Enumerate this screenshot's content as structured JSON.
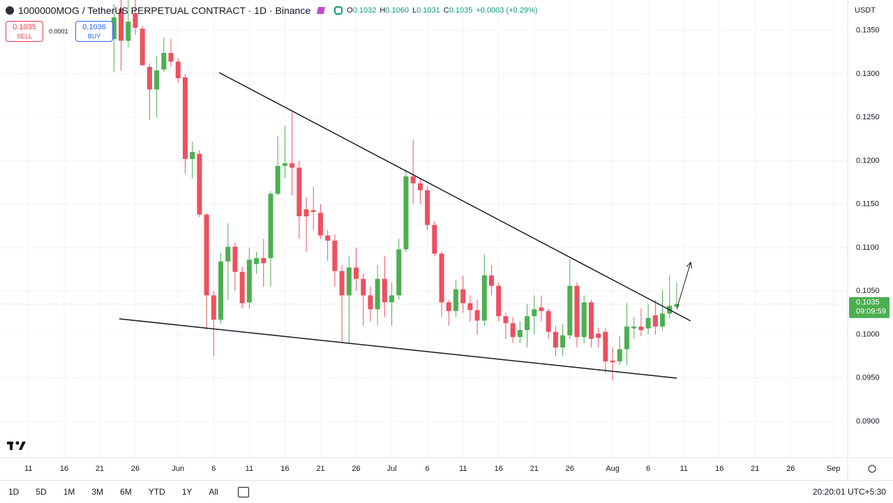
{
  "header": {
    "title": "1000000MOG / TetherUS PERPETUAL CONTRACT · 1D · Binance",
    "ohlc": [
      {
        "label": "O",
        "value": "0.1032"
      },
      {
        "label": "H",
        "value": "0.1060"
      },
      {
        "label": "L",
        "value": "0.1031"
      },
      {
        "label": "C",
        "value": "0.1035"
      }
    ],
    "change": "+0.0003 (+0.29%)",
    "sell": {
      "price": "0.1035",
      "label": "SELL"
    },
    "spread": "0.0001",
    "buy": {
      "price": "0.1036",
      "label": "BUY"
    }
  },
  "chart_data": {
    "type": "candlestick",
    "currency": "USDT",
    "up_color": "#4caf50",
    "down_color": "#ef4f5f",
    "x": [
      "05-23",
      "05-24",
      "05-25",
      "05-26",
      "05-27",
      "05-28",
      "05-29",
      "05-30",
      "05-31",
      "06-01",
      "06-02",
      "06-03",
      "06-04",
      "06-05",
      "06-06",
      "06-07",
      "06-08",
      "06-09",
      "06-10",
      "06-11",
      "06-12",
      "06-13",
      "06-14",
      "06-15",
      "06-16",
      "06-17",
      "06-18",
      "06-19",
      "06-20",
      "06-21",
      "06-22",
      "06-23",
      "06-24",
      "06-25",
      "06-26",
      "06-27",
      "06-28",
      "06-29",
      "06-30",
      "07-01",
      "07-02",
      "07-03",
      "07-04",
      "07-05",
      "07-06",
      "07-07",
      "07-08",
      "07-09",
      "07-10",
      "07-11",
      "07-12",
      "07-13",
      "07-14",
      "07-15",
      "07-16",
      "07-17",
      "07-18",
      "07-19",
      "07-20",
      "07-21",
      "07-22",
      "07-23",
      "07-24",
      "07-25",
      "07-26",
      "07-27",
      "07-28",
      "07-29",
      "07-30",
      "07-31",
      "08-01",
      "08-02",
      "08-03",
      "08-04",
      "08-05",
      "08-06",
      "08-07",
      "08-08",
      "08-09",
      "08-10"
    ],
    "open": [
      0.134,
      0.1375,
      0.1338,
      0.137,
      0.1352,
      0.1308,
      0.1282,
      0.1305,
      0.1324,
      0.1314,
      0.1296,
      0.1202,
      0.1208,
      0.1138,
      0.1045,
      0.1017,
      0.1084,
      0.1101,
      0.1072,
      0.1037,
      0.1081,
      0.1088,
      0.1088,
      0.1162,
      0.1194,
      0.1197,
      0.1192,
      0.1144,
      0.1143,
      0.114,
      0.1114,
      0.1108,
      0.1073,
      0.1045,
      0.1077,
      0.1064,
      0.1045,
      0.1029,
      0.1064,
      0.1037,
      0.1045,
      0.1098,
      0.1182,
      0.1174,
      0.1166,
      0.1126,
      0.1093,
      0.1037,
      0.1027,
      0.1052,
      0.1036,
      0.1028,
      0.1016,
      0.1068,
      0.1056,
      0.1021,
      0.1013,
      0.0997,
      0.1005,
      0.1021,
      0.1031,
      0.1027,
      0.1003,
      0.0985,
      0.0999,
      0.1056,
      0.0997,
      0.1037,
      0.1001,
      0.1003,
      0.097,
      0.0969,
      0.0983,
      0.1007,
      0.1009,
      0.1007,
      0.1022,
      0.1009,
      0.1024,
      0.1032
    ],
    "high": [
      0.138,
      0.1385,
      0.1385,
      0.1385,
      0.1355,
      0.1312,
      0.132,
      0.1342,
      0.134,
      0.1318,
      0.13,
      0.1222,
      0.1212,
      0.114,
      0.105,
      0.1094,
      0.1128,
      0.1106,
      0.1078,
      0.11,
      0.1095,
      0.111,
      0.1165,
      0.1228,
      0.124,
      0.1256,
      0.12,
      0.1158,
      0.117,
      0.115,
      0.112,
      0.1115,
      0.108,
      0.109,
      0.11,
      0.107,
      0.1055,
      0.108,
      0.109,
      0.106,
      0.111,
      0.119,
      0.1224,
      0.118,
      0.117,
      0.113,
      0.1095,
      0.104,
      0.1062,
      0.1068,
      0.1045,
      0.104,
      0.1092,
      0.108,
      0.106,
      0.1025,
      0.102,
      0.1015,
      0.1035,
      0.1045,
      0.1045,
      0.103,
      0.101,
      0.1012,
      0.1086,
      0.106,
      0.1045,
      0.104,
      0.1008,
      0.1007,
      0.0985,
      0.0998,
      0.1036,
      0.102,
      0.103,
      0.1035,
      0.104,
      0.1051,
      0.1068,
      0.106
    ],
    "low": [
      0.1302,
      0.1304,
      0.133,
      0.1345,
      0.1309,
      0.1247,
      0.125,
      0.1302,
      0.1308,
      0.129,
      0.1185,
      0.118,
      0.1135,
      0.1005,
      0.0975,
      0.1012,
      0.104,
      0.105,
      0.103,
      0.103,
      0.107,
      0.1055,
      0.1055,
      0.116,
      0.118,
      0.116,
      0.111,
      0.1095,
      0.112,
      0.111,
      0.1085,
      0.1055,
      0.099,
      0.099,
      0.105,
      0.101,
      0.1015,
      0.101,
      0.102,
      0.101,
      0.104,
      0.1095,
      0.115,
      0.115,
      0.112,
      0.109,
      0.102,
      0.101,
      0.102,
      0.1025,
      0.1015,
      0.1,
      0.101,
      0.1045,
      0.1015,
      0.0995,
      0.099,
      0.099,
      0.0985,
      0.1,
      0.1015,
      0.0995,
      0.0975,
      0.0975,
      0.0995,
      0.0985,
      0.099,
      0.0985,
      0.0985,
      0.0955,
      0.0947,
      0.0965,
      0.0965,
      0.0995,
      0.0998,
      0.1,
      0.1,
      0.1005,
      0.1018,
      0.1031
    ],
    "close": [
      0.1365,
      0.1338,
      0.136,
      0.1353,
      0.131,
      0.1282,
      0.1304,
      0.1324,
      0.1314,
      0.1295,
      0.1202,
      0.121,
      0.1138,
      0.1045,
      0.1017,
      0.1084,
      0.1101,
      0.1072,
      0.1036,
      0.1086,
      0.1088,
      0.1082,
      0.1162,
      0.1194,
      0.1197,
      0.1192,
      0.1136,
      0.1136,
      0.1141,
      0.1114,
      0.1108,
      0.1073,
      0.1045,
      0.1077,
      0.1064,
      0.1045,
      0.1029,
      0.1064,
      0.1037,
      0.1045,
      0.1098,
      0.1182,
      0.1174,
      0.1166,
      0.1126,
      0.1093,
      0.1037,
      0.1027,
      0.1052,
      0.1036,
      0.1028,
      0.1016,
      0.1068,
      0.1056,
      0.1021,
      0.1013,
      0.0997,
      0.1005,
      0.1021,
      0.1029,
      0.1027,
      0.1003,
      0.0985,
      0.0999,
      0.1056,
      0.0997,
      0.1037,
      0.0995,
      0.0996,
      0.0969,
      0.0968,
      0.0983,
      0.1009,
      0.1009,
      0.1005,
      0.1019,
      0.1009,
      0.1024,
      0.1033,
      0.1035
    ],
    "xlim": [
      "05-07",
      "09-03"
    ],
    "xticks": [
      {
        "value": "05-11",
        "label": "11"
      },
      {
        "value": "05-16",
        "label": "16"
      },
      {
        "value": "05-21",
        "label": "21"
      },
      {
        "value": "05-26",
        "label": "26"
      },
      {
        "value": "06-01",
        "label": "Jun"
      },
      {
        "value": "06-06",
        "label": "6"
      },
      {
        "value": "06-11",
        "label": "11"
      },
      {
        "value": "06-16",
        "label": "16"
      },
      {
        "value": "06-21",
        "label": "21"
      },
      {
        "value": "06-26",
        "label": "26"
      },
      {
        "value": "07-01",
        "label": "Jul"
      },
      {
        "value": "07-06",
        "label": "6"
      },
      {
        "value": "07-11",
        "label": "11"
      },
      {
        "value": "07-16",
        "label": "16"
      },
      {
        "value": "07-21",
        "label": "21"
      },
      {
        "value": "07-26",
        "label": "26"
      },
      {
        "value": "08-01",
        "label": "Aug"
      },
      {
        "value": "08-06",
        "label": "6"
      },
      {
        "value": "08-11",
        "label": "11"
      },
      {
        "value": "08-16",
        "label": "16"
      },
      {
        "value": "08-21",
        "label": "21"
      },
      {
        "value": "08-26",
        "label": "26"
      },
      {
        "value": "09-01",
        "label": "Sep"
      }
    ],
    "ylim": [
      0.0859,
      0.1385
    ],
    "yticks": [
      {
        "value": 0.135,
        "label": "0.1350"
      },
      {
        "value": 0.13,
        "label": "0.1300"
      },
      {
        "value": 0.125,
        "label": "0.1250"
      },
      {
        "value": 0.12,
        "label": "0.1200"
      },
      {
        "value": 0.115,
        "label": "0.1150"
      },
      {
        "value": 0.11,
        "label": "0.1100"
      },
      {
        "value": 0.105,
        "label": "0.1050"
      },
      {
        "value": 0.1,
        "label": "0.1000"
      },
      {
        "value": 0.095,
        "label": "0.0950"
      },
      {
        "value": 0.09,
        "label": "0.0900"
      }
    ],
    "last_price": 0.1035,
    "countdown": "09:09:59"
  },
  "toolbar": {
    "ranges": [
      "1D",
      "5D",
      "1M",
      "3M",
      "6M",
      "YTD",
      "1Y",
      "All"
    ],
    "clock": "20:20:01 UTC+5:30"
  }
}
